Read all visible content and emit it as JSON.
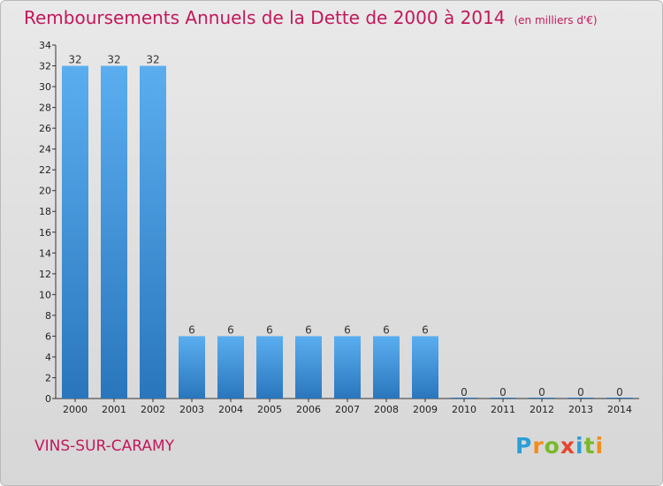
{
  "chart_data": {
    "type": "bar",
    "title": "Remboursements Annuels de la Dette de 2000 à 2014",
    "subtitle": "(en milliers d'€)",
    "xlabel": "",
    "ylabel": "",
    "categories": [
      "2000",
      "2001",
      "2002",
      "2003",
      "2004",
      "2005",
      "2006",
      "2007",
      "2008",
      "2009",
      "2010",
      "2011",
      "2012",
      "2013",
      "2014"
    ],
    "values": [
      32,
      32,
      32,
      6,
      6,
      6,
      6,
      6,
      6,
      6,
      0,
      0,
      0,
      0,
      0
    ],
    "ylim": [
      0,
      34
    ],
    "yticks": [
      0,
      2,
      4,
      6,
      8,
      10,
      12,
      14,
      16,
      18,
      20,
      22,
      24,
      26,
      28,
      30,
      32,
      34
    ],
    "grid": false,
    "bar_color": "#3d8fd6"
  },
  "footer": {
    "commune": "VINS-SUR-CARAMY",
    "logo": "Proxiti",
    "logo_colors": [
      "#2a9fd8",
      "#f28c1c",
      "#7ab929",
      "#e8452c",
      "#2a9fd8",
      "#7ab929",
      "#f28c1c"
    ]
  },
  "colors": {
    "title": "#c2185b"
  }
}
